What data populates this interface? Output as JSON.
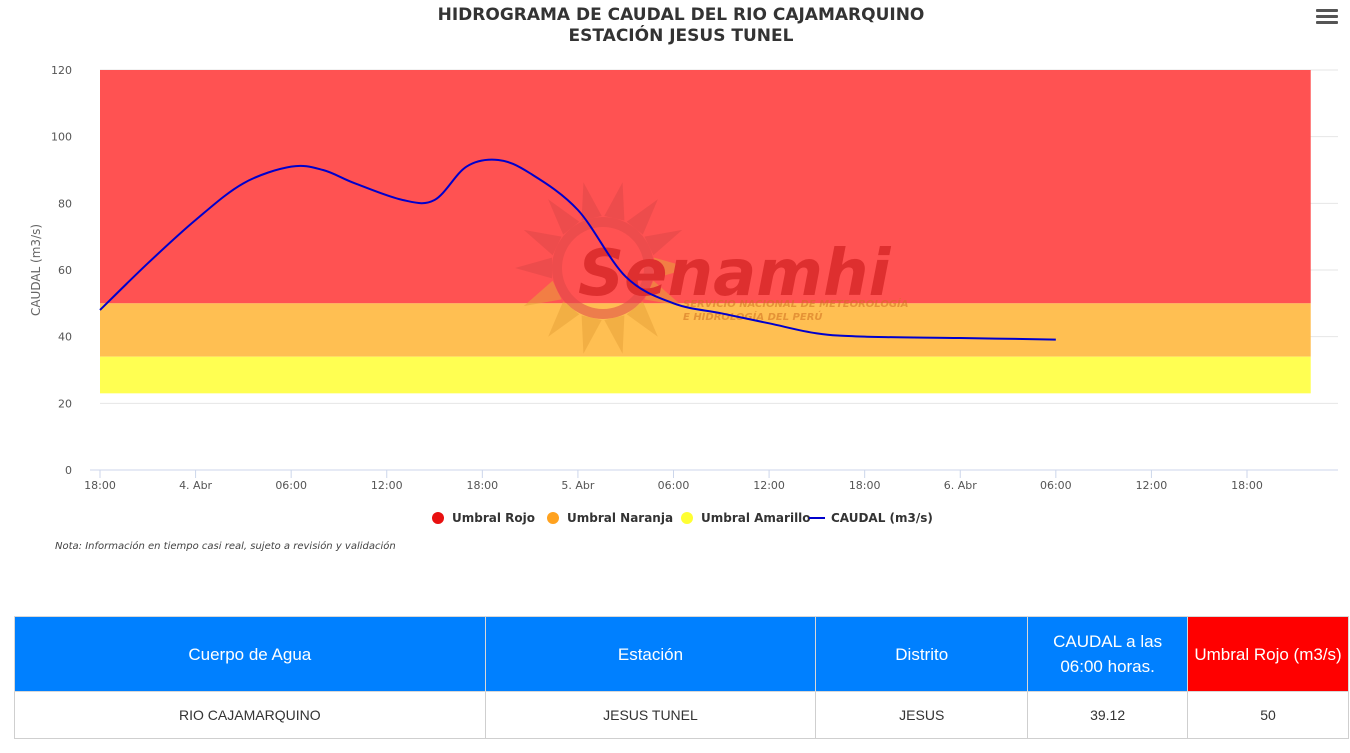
{
  "chart_data": {
    "type": "area",
    "title": "HIDROGRAMA DE CAUDAL DEL RIO CAJAMARQUINO",
    "subtitle": "ESTACIÓN JESUS TUNEL",
    "ylabel": "CAUDAL (m3/s)",
    "xlabel": "",
    "ylim": [
      0,
      120
    ],
    "yticks": [
      0,
      20,
      40,
      60,
      80,
      100,
      120
    ],
    "xlim": [
      "2024-04-03 18:00",
      "2024-04-06 22:00"
    ],
    "xticks": [
      {
        "t": "2024-04-03 18:00",
        "label": "18:00"
      },
      {
        "t": "2024-04-04 00:00",
        "label": "4. Abr"
      },
      {
        "t": "2024-04-04 06:00",
        "label": "06:00"
      },
      {
        "t": "2024-04-04 12:00",
        "label": "12:00"
      },
      {
        "t": "2024-04-04 18:00",
        "label": "18:00"
      },
      {
        "t": "2024-04-05 00:00",
        "label": "5. Abr"
      },
      {
        "t": "2024-04-05 06:00",
        "label": "06:00"
      },
      {
        "t": "2024-04-05 12:00",
        "label": "12:00"
      },
      {
        "t": "2024-04-05 18:00",
        "label": "18:00"
      },
      {
        "t": "2024-04-06 00:00",
        "label": "6. Abr"
      },
      {
        "t": "2024-04-06 06:00",
        "label": "06:00"
      },
      {
        "t": "2024-04-06 12:00",
        "label": "12:00"
      },
      {
        "t": "2024-04-06 18:00",
        "label": "18:00"
      }
    ],
    "bands": [
      {
        "name": "Umbral Rojo",
        "from": 50,
        "to": 120,
        "color": "#ff5252"
      },
      {
        "name": "Umbral Naranja",
        "from": 34,
        "to": 50,
        "color": "#ffbf52"
      },
      {
        "name": "Umbral Amarillo",
        "from": 23,
        "to": 34,
        "color": "#ffff52"
      }
    ],
    "series": [
      {
        "name": "CAUDAL (m3/s)",
        "color": "#0000cc",
        "points": [
          [
            "2024-04-03 18:00",
            48
          ],
          [
            "2024-04-03 21:00",
            62
          ],
          [
            "2024-04-04 00:00",
            75
          ],
          [
            "2024-04-04 03:00",
            86
          ],
          [
            "2024-04-04 06:00",
            91
          ],
          [
            "2024-04-04 08:00",
            90
          ],
          [
            "2024-04-04 10:00",
            86
          ],
          [
            "2024-04-04 13:00",
            81
          ],
          [
            "2024-04-04 15:00",
            81
          ],
          [
            "2024-04-04 17:00",
            91
          ],
          [
            "2024-04-04 19:00",
            93
          ],
          [
            "2024-04-04 21:00",
            89
          ],
          [
            "2024-04-05 00:00",
            78
          ],
          [
            "2024-04-05 03:00",
            58
          ],
          [
            "2024-04-05 06:00",
            50
          ],
          [
            "2024-04-05 09:00",
            47
          ],
          [
            "2024-04-05 12:00",
            44
          ],
          [
            "2024-04-05 15:00",
            41
          ],
          [
            "2024-04-05 18:00",
            40
          ],
          [
            "2024-04-06 00:00",
            39.6
          ],
          [
            "2024-04-06 06:00",
            39.12
          ]
        ]
      }
    ],
    "legend": {
      "position": "bottom",
      "items": [
        {
          "label": "Umbral Rojo",
          "color": "#e81010",
          "symbol": "circle"
        },
        {
          "label": "Umbral Naranja",
          "color": "#ffa21f",
          "symbol": "circle"
        },
        {
          "label": "Umbral Amarillo",
          "color": "#ffff33",
          "symbol": "circle"
        },
        {
          "label": "CAUDAL (m3/s)",
          "color": "#0000cc",
          "symbol": "line"
        }
      ]
    },
    "grid": true
  },
  "watermark": {
    "title": "Senamhi",
    "line1": "SERVICIO NACIONAL DE METEOROLOGÍA",
    "line2": "E HIDROLOGÍA DEL PERÚ"
  },
  "note": "Nota: Información en tiempo casi real, sujeto a revisión y validación",
  "menu_icon": "hamburger-menu-icon",
  "table": {
    "headers": [
      "Cuerpo de Agua",
      "Estación",
      "Distrito",
      "CAUDAL a las 06:00 horas.",
      "Umbral Rojo (m3/s)"
    ],
    "row": [
      "RIO CAJAMARQUINO",
      "JESUS TUNEL",
      "JESUS",
      "39.12",
      "50"
    ],
    "header_color": "#0080ff",
    "alert_color": "#ff0000"
  }
}
